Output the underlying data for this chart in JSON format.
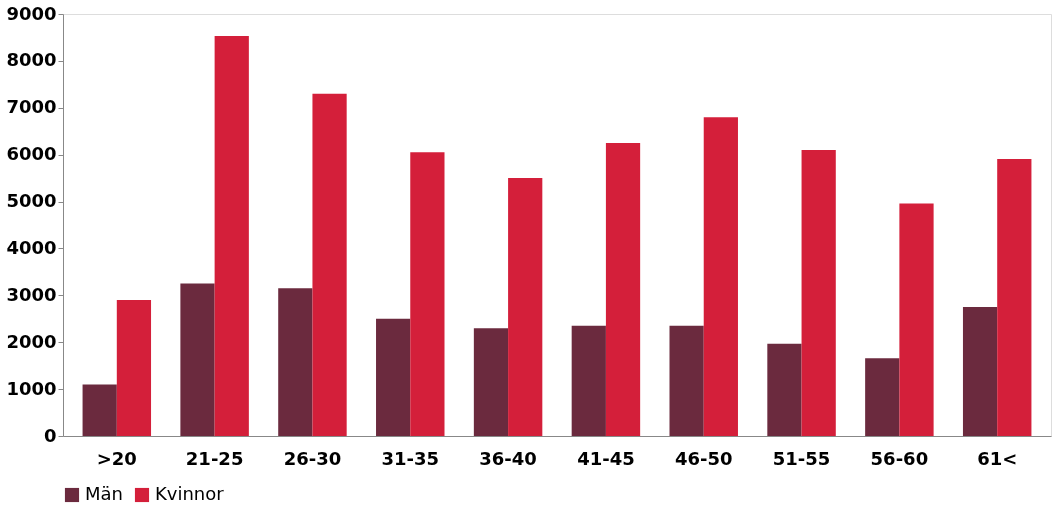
{
  "chart_data": {
    "type": "bar",
    "categories": [
      ">20",
      "21-25",
      "26-30",
      "31-35",
      "36-40",
      "41-45",
      "46-50",
      "51-55",
      "56-60",
      "61<"
    ],
    "series": [
      {
        "name": "Män",
        "color": "#6b2a3e",
        "values": [
          1100,
          3250,
          3150,
          2500,
          2300,
          2350,
          2350,
          1970,
          1660,
          2750
        ]
      },
      {
        "name": "Kvinnor",
        "color": "#d41f3a",
        "values": [
          2900,
          8530,
          7300,
          6050,
          5500,
          6250,
          6800,
          6100,
          4960,
          5910
        ]
      }
    ],
    "ylim": [
      0,
      9000
    ],
    "yticks": [
      0,
      1000,
      2000,
      3000,
      4000,
      5000,
      6000,
      7000,
      8000,
      9000
    ],
    "grid": false,
    "legend": "bottom"
  }
}
